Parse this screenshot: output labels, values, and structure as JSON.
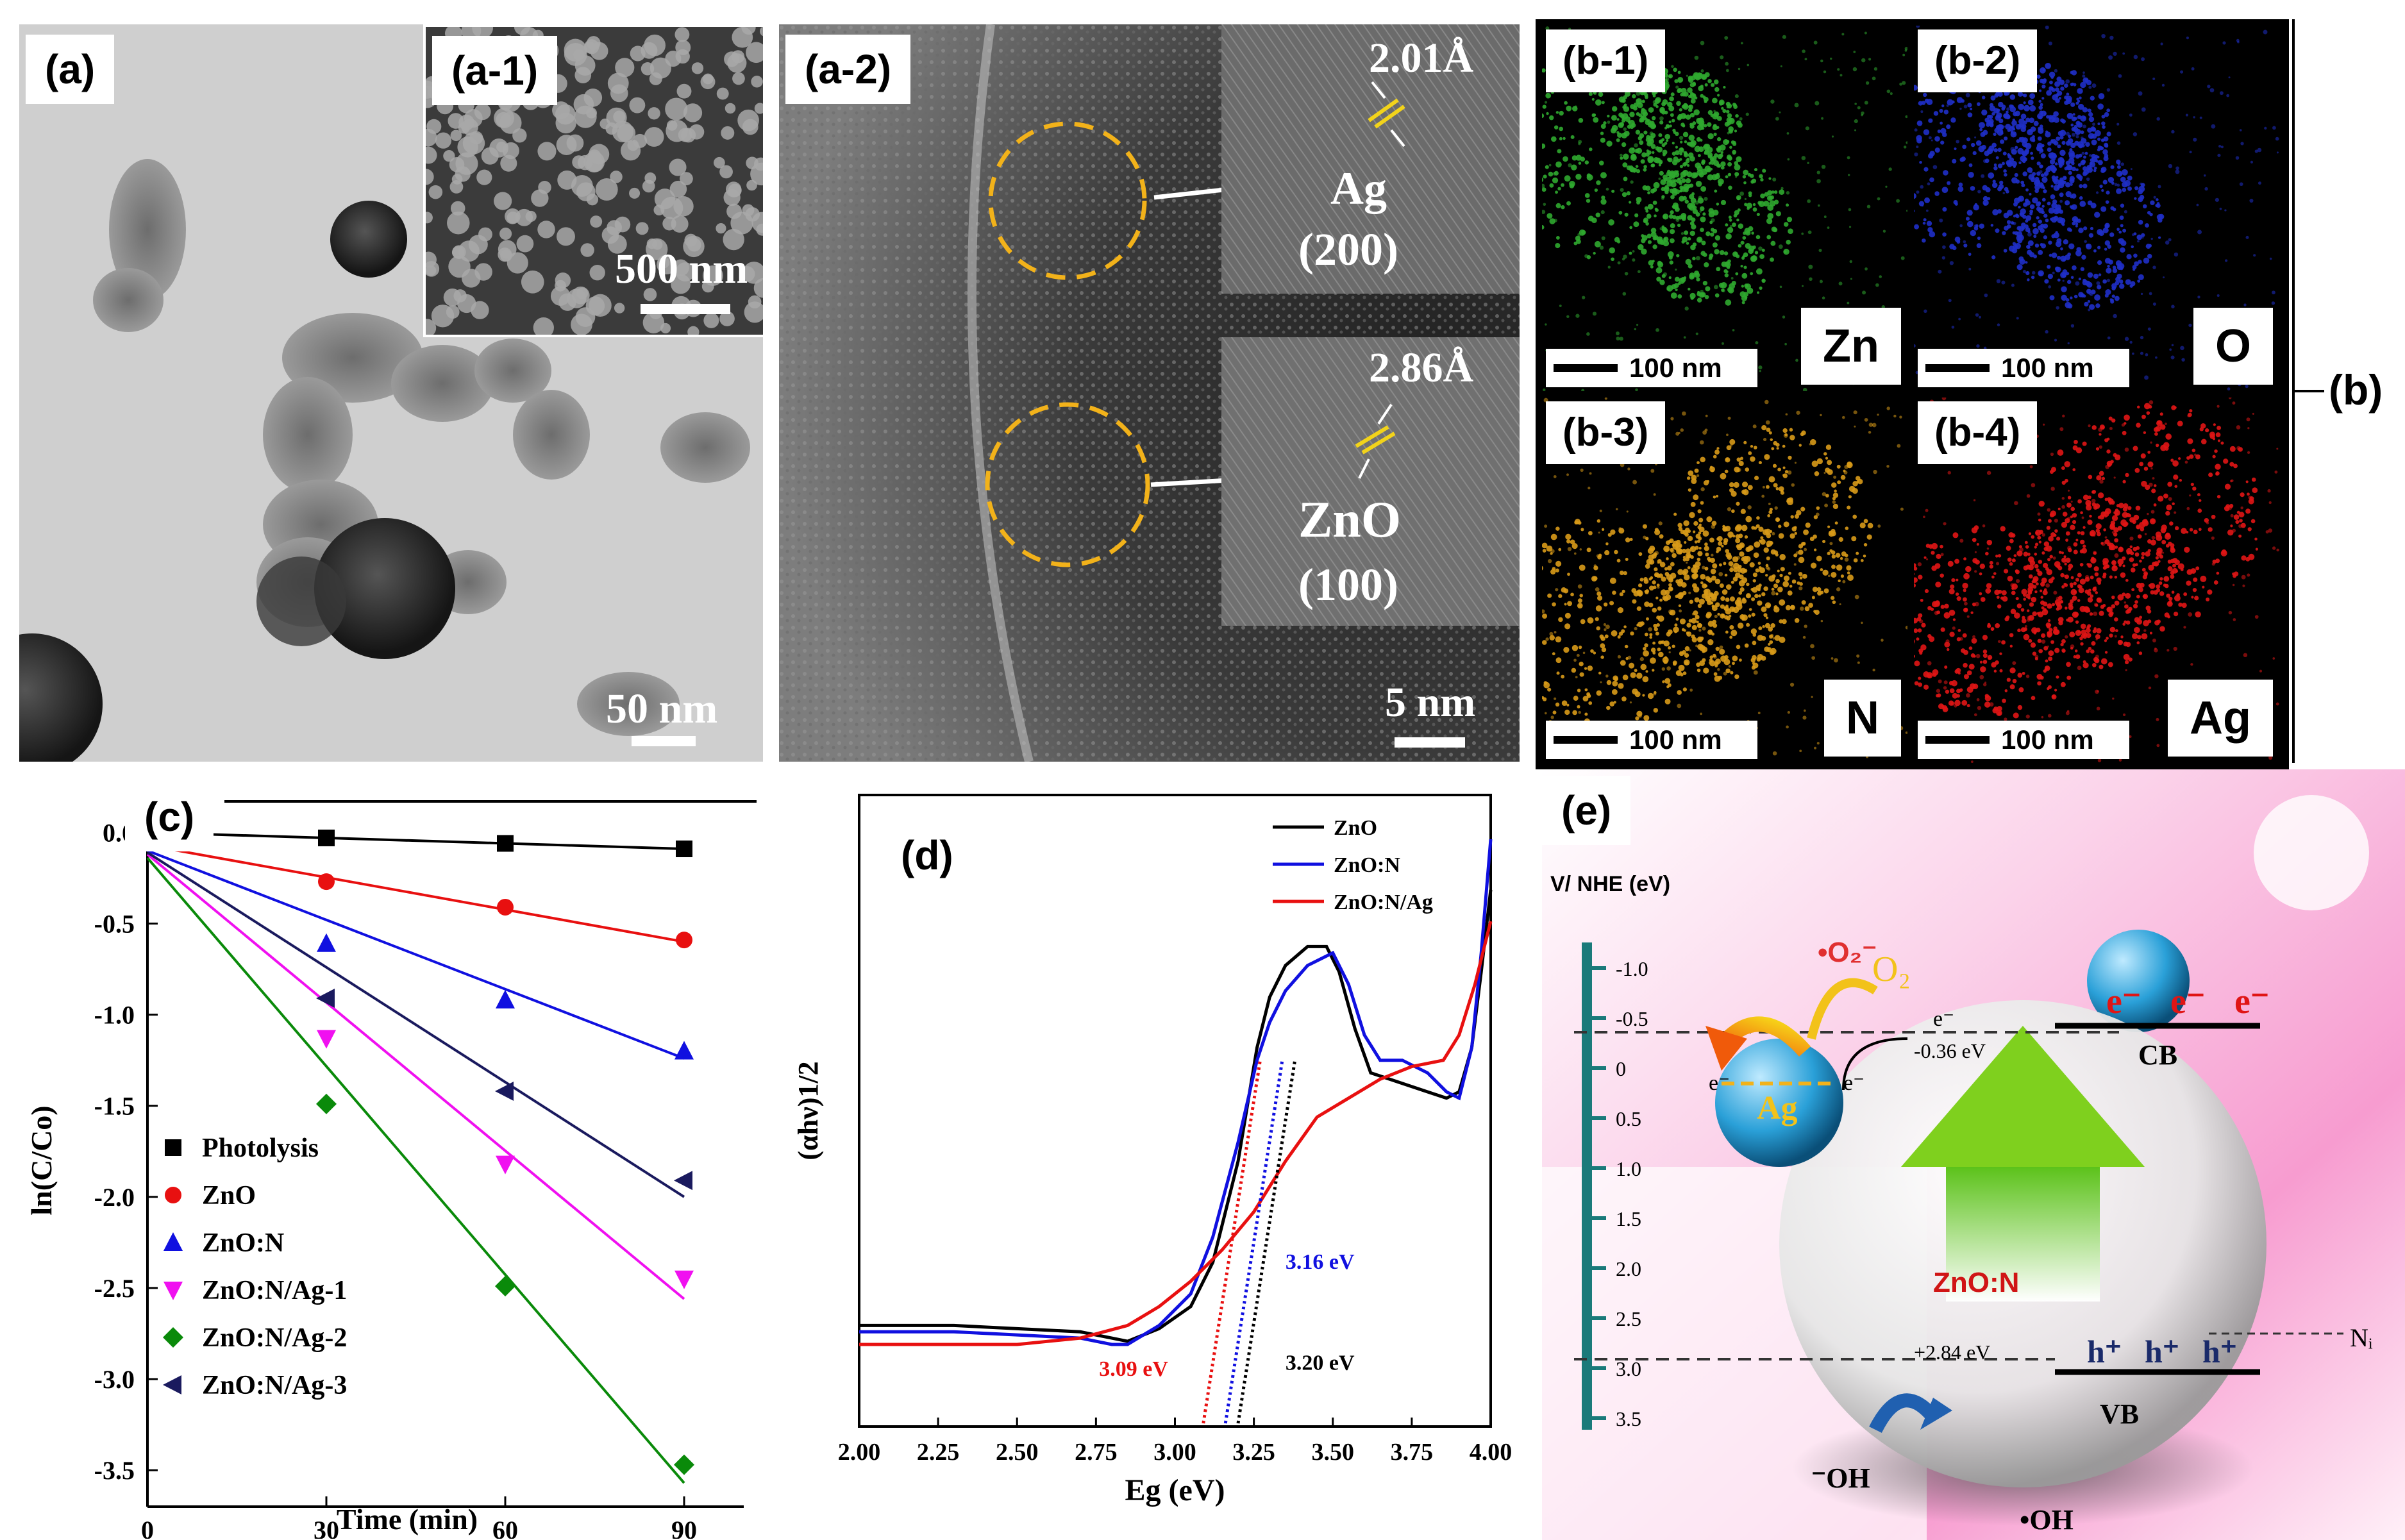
{
  "panels": {
    "a": {
      "label": "(a)",
      "scale": "50 nm"
    },
    "a1": {
      "label": "(a-1)",
      "scale": "500 nm"
    },
    "a2": {
      "label": "(a-2)",
      "scale": "5 nm",
      "inset_top": {
        "spacing": "2.01Å",
        "phase": "Ag",
        "plane": "(200)"
      },
      "inset_bottom": {
        "spacing": "2.86Å",
        "phase": "ZnO",
        "plane": "(100)"
      }
    },
    "b": {
      "label": "(b)",
      "maps": [
        {
          "label": "(b-1)",
          "element": "Zn",
          "scale": "100 nm",
          "color": "#2fa82f"
        },
        {
          "label": "(b-2)",
          "element": "O",
          "scale": "100 nm",
          "color": "#1f2fc8"
        },
        {
          "label": "(b-3)",
          "element": "N",
          "scale": "100 nm",
          "color": "#d89a18"
        },
        {
          "label": "(b-4)",
          "element": "Ag",
          "scale": "100 nm",
          "color": "#e01515"
        }
      ]
    },
    "c": {
      "label": "(c)"
    },
    "d": {
      "label": "(d)"
    },
    "e": {
      "label": "(e)",
      "axis_title": "V/ NHE (eV)",
      "ticks": [
        "-1.0",
        "-0.5",
        "0",
        "0.5",
        "1.0",
        "1.5",
        "2.0",
        "2.5",
        "3.0",
        "3.5"
      ],
      "o2_radical": "•O₂⁻",
      "o2": "O₂",
      "electron": "e⁻",
      "hole": "h⁺",
      "cb": "CB",
      "vb": "VB",
      "cb_level": "-0.36 eV",
      "vb_level": "+2.84 eV",
      "ni": "Nᵢ",
      "ag": "Ag",
      "core": "ZnO:N",
      "oh_minus": "⁻OH",
      "oh_radical": "•OH"
    }
  },
  "chart_data": [
    {
      "type": "scatter",
      "panel": "(c)",
      "xlabel": "Time (min)",
      "ylabel": "ln(C/Co)",
      "xlim": [
        0,
        100
      ],
      "ylim": [
        -3.7,
        0.1
      ],
      "xticks": [
        0,
        30,
        60,
        90
      ],
      "yticks": [
        0.0,
        -0.5,
        -1.0,
        -1.5,
        -2.0,
        -2.5,
        -3.0,
        -3.5
      ],
      "legend_position": "bottom-left",
      "x": [
        0,
        30,
        60,
        90
      ],
      "series": [
        {
          "name": "Photolysis",
          "color": "#000000",
          "marker": "square",
          "values": [
            0,
            -0.03,
            -0.06,
            -0.09
          ],
          "fit": [
            0,
            -0.09
          ]
        },
        {
          "name": "ZnO",
          "color": "#e81010",
          "marker": "circle",
          "values": [
            0,
            -0.27,
            -0.41,
            -0.59
          ],
          "fit": [
            -0.07,
            -0.6
          ]
        },
        {
          "name": "ZnO:N",
          "color": "#1010e0",
          "marker": "triangle-up",
          "values": [
            0,
            -0.61,
            -0.92,
            -1.2
          ],
          "fit": [
            -0.1,
            -1.24
          ]
        },
        {
          "name": "ZnO:N/Ag-1",
          "color": "#f010f0",
          "marker": "triangle-down",
          "values": [
            0,
            -1.13,
            -1.82,
            -2.45
          ],
          "fit": [
            -0.12,
            -2.56
          ]
        },
        {
          "name": "ZnO:N/Ag-2",
          "color": "#0a8a0a",
          "marker": "diamond",
          "values": [
            0,
            -1.49,
            -2.49,
            -3.47
          ],
          "fit": [
            -0.14,
            -3.57
          ]
        },
        {
          "name": "ZnO:N/Ag-3",
          "color": "#1a1a5e",
          "marker": "triangle-left",
          "values": [
            0,
            -0.91,
            -1.42,
            -1.91
          ],
          "fit": [
            -0.11,
            -2.0
          ]
        }
      ]
    },
    {
      "type": "line",
      "panel": "(d)",
      "xlabel": "Eg (eV)",
      "ylabel": "(αhν)1/2",
      "xlim": [
        2.0,
        4.0
      ],
      "xticks": [
        "2.00",
        "2.25",
        "2.50",
        "2.75",
        "3.00",
        "3.25",
        "3.50",
        "3.75",
        "4.00"
      ],
      "legend_position": "top-right",
      "series": [
        {
          "name": "ZnO",
          "color": "#000000",
          "x": [
            2.0,
            2.3,
            2.5,
            2.7,
            2.8,
            2.85,
            2.95,
            3.05,
            3.12,
            3.2,
            3.26,
            3.3,
            3.35,
            3.42,
            3.48,
            3.52,
            3.57,
            3.62,
            3.68,
            3.74,
            3.8,
            3.86,
            3.9,
            3.94,
            3.97,
            4.0
          ],
          "y": [
            0.16,
            0.16,
            0.155,
            0.15,
            0.14,
            0.135,
            0.155,
            0.19,
            0.26,
            0.42,
            0.6,
            0.68,
            0.73,
            0.76,
            0.76,
            0.72,
            0.63,
            0.56,
            0.55,
            0.54,
            0.53,
            0.52,
            0.53,
            0.6,
            0.72,
            0.85
          ]
        },
        {
          "name": "ZnO:N",
          "color": "#1010e0",
          "x": [
            2.0,
            2.3,
            2.5,
            2.7,
            2.8,
            2.85,
            2.95,
            3.05,
            3.12,
            3.2,
            3.26,
            3.3,
            3.35,
            3.42,
            3.5,
            3.55,
            3.6,
            3.65,
            3.72,
            3.8,
            3.86,
            3.9,
            3.94,
            3.97,
            4.0
          ],
          "y": [
            0.15,
            0.15,
            0.145,
            0.14,
            0.13,
            0.13,
            0.16,
            0.21,
            0.3,
            0.45,
            0.58,
            0.64,
            0.69,
            0.73,
            0.75,
            0.7,
            0.62,
            0.58,
            0.58,
            0.56,
            0.53,
            0.52,
            0.6,
            0.75,
            0.93
          ]
        },
        {
          "name": "ZnO:N/Ag",
          "color": "#e81010",
          "x": [
            2.0,
            2.3,
            2.5,
            2.7,
            2.85,
            2.95,
            3.05,
            3.15,
            3.25,
            3.35,
            3.45,
            3.55,
            3.65,
            3.75,
            3.85,
            3.9,
            3.95,
            4.0
          ],
          "y": [
            0.13,
            0.13,
            0.13,
            0.14,
            0.16,
            0.19,
            0.23,
            0.28,
            0.34,
            0.42,
            0.49,
            0.52,
            0.55,
            0.57,
            0.58,
            0.62,
            0.7,
            0.8
          ]
        }
      ],
      "annotations": [
        {
          "text": "3.16 eV",
          "color": "#1010e0",
          "x_intercept": 3.16
        },
        {
          "text": "3.09 eV",
          "color": "#e81010",
          "x_intercept": 3.09
        },
        {
          "text": "3.20 eV",
          "color": "#000000",
          "x_intercept": 3.2
        }
      ]
    }
  ]
}
